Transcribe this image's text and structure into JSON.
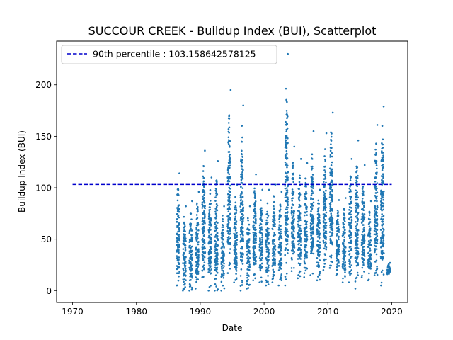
{
  "chart_data": {
    "type": "scatter",
    "title": "SUCCOUR CREEK - Buildup Index (BUI), Scatterplot",
    "xlabel": "Date",
    "ylabel": "Buildup Index (BUI)",
    "xlim": [
      1967.5,
      2022.5
    ],
    "ylim": [
      -11.5,
      242.5
    ],
    "x_ticks": [
      1970,
      1980,
      1990,
      2000,
      2010,
      2020
    ],
    "y_ticks": [
      0,
      50,
      100,
      150,
      200
    ],
    "grid": false,
    "legend_position": "top-left",
    "point_color": "#1f77b4",
    "reference_line": {
      "label": "90th percentile : 103.158642578125",
      "y": 103.158642578125,
      "x_start": 1970,
      "x_end": 2020,
      "style": "dashed",
      "color": "#0000cc"
    },
    "seasons": [
      {
        "year": 1986,
        "min": 5,
        "max": 114
      },
      {
        "year": 1987,
        "min": 0,
        "max": 82
      },
      {
        "year": 1988,
        "min": 0,
        "max": 87
      },
      {
        "year": 1989,
        "min": 2,
        "max": 96
      },
      {
        "year": 1990,
        "min": 13,
        "max": 136
      },
      {
        "year": 1991,
        "min": 0,
        "max": 110
      },
      {
        "year": 1992,
        "min": 0,
        "max": 126
      },
      {
        "year": 1993,
        "min": 0,
        "max": 82
      },
      {
        "year": 1994,
        "min": 17,
        "max": 195
      },
      {
        "year": 1995,
        "min": 8,
        "max": 103
      },
      {
        "year": 1996,
        "min": 0,
        "max": 180
      },
      {
        "year": 1997,
        "min": 2,
        "max": 82
      },
      {
        "year": 1998,
        "min": 10,
        "max": 113
      },
      {
        "year": 1999,
        "min": 8,
        "max": 98
      },
      {
        "year": 2000,
        "min": 5,
        "max": 98
      },
      {
        "year": 2001,
        "min": 8,
        "max": 103
      },
      {
        "year": 2002,
        "min": 5,
        "max": 96
      },
      {
        "year": 2003,
        "min": 5,
        "max": 230
      },
      {
        "year": 2004,
        "min": 19,
        "max": 140
      },
      {
        "year": 2005,
        "min": 12,
        "max": 128
      },
      {
        "year": 2006,
        "min": 13,
        "max": 124
      },
      {
        "year": 2007,
        "min": 15,
        "max": 155
      },
      {
        "year": 2008,
        "min": 10,
        "max": 98
      },
      {
        "year": 2009,
        "min": 20,
        "max": 153
      },
      {
        "year": 2010,
        "min": 22,
        "max": 173
      },
      {
        "year": 2011,
        "min": 15,
        "max": 88
      },
      {
        "year": 2012,
        "min": 8,
        "max": 90
      },
      {
        "year": 2013,
        "min": 8,
        "max": 128
      },
      {
        "year": 2014,
        "min": 2,
        "max": 146
      },
      {
        "year": 2015,
        "min": 13,
        "max": 122
      },
      {
        "year": 2016,
        "min": 10,
        "max": 87
      },
      {
        "year": 2017,
        "min": 15,
        "max": 161
      },
      {
        "year": 2018,
        "min": 5,
        "max": 179
      },
      {
        "year": 2019,
        "min": 16,
        "max": 27
      }
    ]
  }
}
